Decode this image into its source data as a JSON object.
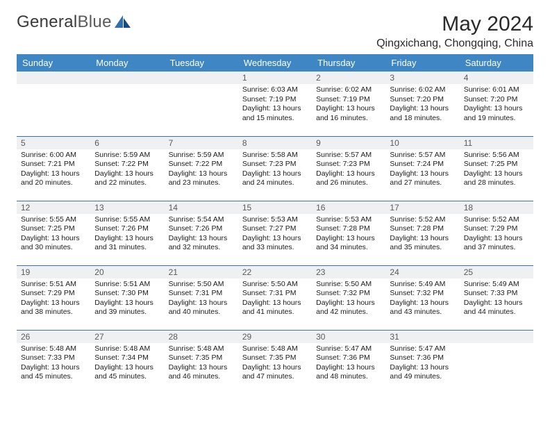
{
  "brand": {
    "left": "General",
    "right": "Blue"
  },
  "title": "May 2024",
  "location": "Qingxichang, Chongqing, China",
  "colors": {
    "header_bg": "#3e86c4",
    "header_text": "#ffffff",
    "cell_border": "#3e72a0",
    "daynum_bg": "#eef0f1",
    "daynum_text": "#5a5a5a",
    "page_bg": "#ffffff",
    "body_text": "#1a1a1a",
    "logo_gray": "#5a5a5a",
    "logo_blue": "#2f6fae"
  },
  "fonts": {
    "family": "Arial",
    "month_title_pt": 22,
    "location_pt": 12,
    "dayheader_pt": 10,
    "daynum_pt": 9,
    "body_pt": 8
  },
  "day_headers": [
    "Sunday",
    "Monday",
    "Tuesday",
    "Wednesday",
    "Thursday",
    "Friday",
    "Saturday"
  ],
  "weeks": [
    [
      null,
      null,
      null,
      {
        "n": "1",
        "sunrise": "Sunrise: 6:03 AM",
        "sunset": "Sunset: 7:19 PM",
        "daylight": "Daylight: 13 hours and 15 minutes."
      },
      {
        "n": "2",
        "sunrise": "Sunrise: 6:02 AM",
        "sunset": "Sunset: 7:19 PM",
        "daylight": "Daylight: 13 hours and 16 minutes."
      },
      {
        "n": "3",
        "sunrise": "Sunrise: 6:02 AM",
        "sunset": "Sunset: 7:20 PM",
        "daylight": "Daylight: 13 hours and 18 minutes."
      },
      {
        "n": "4",
        "sunrise": "Sunrise: 6:01 AM",
        "sunset": "Sunset: 7:20 PM",
        "daylight": "Daylight: 13 hours and 19 minutes."
      }
    ],
    [
      {
        "n": "5",
        "sunrise": "Sunrise: 6:00 AM",
        "sunset": "Sunset: 7:21 PM",
        "daylight": "Daylight: 13 hours and 20 minutes."
      },
      {
        "n": "6",
        "sunrise": "Sunrise: 5:59 AM",
        "sunset": "Sunset: 7:22 PM",
        "daylight": "Daylight: 13 hours and 22 minutes."
      },
      {
        "n": "7",
        "sunrise": "Sunrise: 5:59 AM",
        "sunset": "Sunset: 7:22 PM",
        "daylight": "Daylight: 13 hours and 23 minutes."
      },
      {
        "n": "8",
        "sunrise": "Sunrise: 5:58 AM",
        "sunset": "Sunset: 7:23 PM",
        "daylight": "Daylight: 13 hours and 24 minutes."
      },
      {
        "n": "9",
        "sunrise": "Sunrise: 5:57 AM",
        "sunset": "Sunset: 7:23 PM",
        "daylight": "Daylight: 13 hours and 26 minutes."
      },
      {
        "n": "10",
        "sunrise": "Sunrise: 5:57 AM",
        "sunset": "Sunset: 7:24 PM",
        "daylight": "Daylight: 13 hours and 27 minutes."
      },
      {
        "n": "11",
        "sunrise": "Sunrise: 5:56 AM",
        "sunset": "Sunset: 7:25 PM",
        "daylight": "Daylight: 13 hours and 28 minutes."
      }
    ],
    [
      {
        "n": "12",
        "sunrise": "Sunrise: 5:55 AM",
        "sunset": "Sunset: 7:25 PM",
        "daylight": "Daylight: 13 hours and 30 minutes."
      },
      {
        "n": "13",
        "sunrise": "Sunrise: 5:55 AM",
        "sunset": "Sunset: 7:26 PM",
        "daylight": "Daylight: 13 hours and 31 minutes."
      },
      {
        "n": "14",
        "sunrise": "Sunrise: 5:54 AM",
        "sunset": "Sunset: 7:26 PM",
        "daylight": "Daylight: 13 hours and 32 minutes."
      },
      {
        "n": "15",
        "sunrise": "Sunrise: 5:53 AM",
        "sunset": "Sunset: 7:27 PM",
        "daylight": "Daylight: 13 hours and 33 minutes."
      },
      {
        "n": "16",
        "sunrise": "Sunrise: 5:53 AM",
        "sunset": "Sunset: 7:28 PM",
        "daylight": "Daylight: 13 hours and 34 minutes."
      },
      {
        "n": "17",
        "sunrise": "Sunrise: 5:52 AM",
        "sunset": "Sunset: 7:28 PM",
        "daylight": "Daylight: 13 hours and 35 minutes."
      },
      {
        "n": "18",
        "sunrise": "Sunrise: 5:52 AM",
        "sunset": "Sunset: 7:29 PM",
        "daylight": "Daylight: 13 hours and 37 minutes."
      }
    ],
    [
      {
        "n": "19",
        "sunrise": "Sunrise: 5:51 AM",
        "sunset": "Sunset: 7:29 PM",
        "daylight": "Daylight: 13 hours and 38 minutes."
      },
      {
        "n": "20",
        "sunrise": "Sunrise: 5:51 AM",
        "sunset": "Sunset: 7:30 PM",
        "daylight": "Daylight: 13 hours and 39 minutes."
      },
      {
        "n": "21",
        "sunrise": "Sunrise: 5:50 AM",
        "sunset": "Sunset: 7:31 PM",
        "daylight": "Daylight: 13 hours and 40 minutes."
      },
      {
        "n": "22",
        "sunrise": "Sunrise: 5:50 AM",
        "sunset": "Sunset: 7:31 PM",
        "daylight": "Daylight: 13 hours and 41 minutes."
      },
      {
        "n": "23",
        "sunrise": "Sunrise: 5:50 AM",
        "sunset": "Sunset: 7:32 PM",
        "daylight": "Daylight: 13 hours and 42 minutes."
      },
      {
        "n": "24",
        "sunrise": "Sunrise: 5:49 AM",
        "sunset": "Sunset: 7:32 PM",
        "daylight": "Daylight: 13 hours and 43 minutes."
      },
      {
        "n": "25",
        "sunrise": "Sunrise: 5:49 AM",
        "sunset": "Sunset: 7:33 PM",
        "daylight": "Daylight: 13 hours and 44 minutes."
      }
    ],
    [
      {
        "n": "26",
        "sunrise": "Sunrise: 5:48 AM",
        "sunset": "Sunset: 7:33 PM",
        "daylight": "Daylight: 13 hours and 45 minutes."
      },
      {
        "n": "27",
        "sunrise": "Sunrise: 5:48 AM",
        "sunset": "Sunset: 7:34 PM",
        "daylight": "Daylight: 13 hours and 45 minutes."
      },
      {
        "n": "28",
        "sunrise": "Sunrise: 5:48 AM",
        "sunset": "Sunset: 7:35 PM",
        "daylight": "Daylight: 13 hours and 46 minutes."
      },
      {
        "n": "29",
        "sunrise": "Sunrise: 5:48 AM",
        "sunset": "Sunset: 7:35 PM",
        "daylight": "Daylight: 13 hours and 47 minutes."
      },
      {
        "n": "30",
        "sunrise": "Sunrise: 5:47 AM",
        "sunset": "Sunset: 7:36 PM",
        "daylight": "Daylight: 13 hours and 48 minutes."
      },
      {
        "n": "31",
        "sunrise": "Sunrise: 5:47 AM",
        "sunset": "Sunset: 7:36 PM",
        "daylight": "Daylight: 13 hours and 49 minutes."
      },
      null
    ]
  ]
}
